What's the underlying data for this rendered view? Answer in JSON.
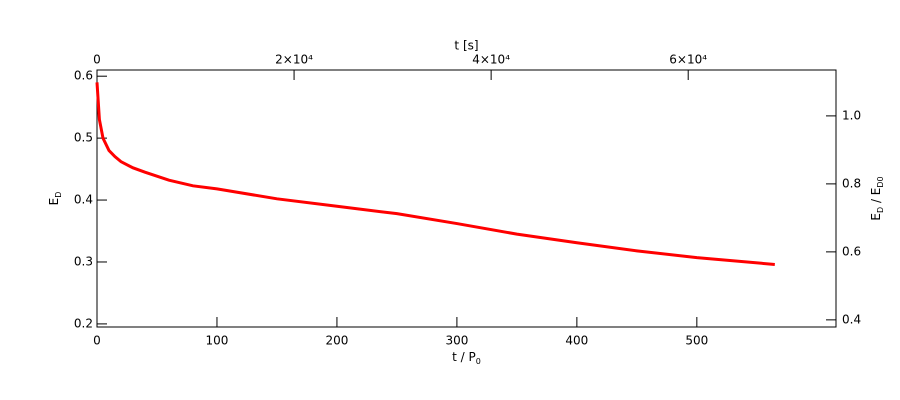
{
  "chart_data": {
    "type": "line",
    "xlabel": [
      "t / P",
      "0"
    ],
    "x2label": "t [s]",
    "ylabel": [
      "E",
      "D"
    ],
    "y2label": [
      "E",
      "D",
      " / E",
      "D0"
    ],
    "x": [
      0,
      1,
      2,
      5,
      10,
      15,
      20,
      30,
      40,
      60,
      80,
      100,
      150,
      200,
      250,
      300,
      350,
      400,
      450,
      500,
      565
    ],
    "series": [
      {
        "color": "#ff0000",
        "values": [
          0.59,
          0.56,
          0.53,
          0.5,
          0.48,
          0.47,
          0.462,
          0.452,
          0.445,
          0.432,
          0.423,
          0.418,
          0.402,
          0.39,
          0.378,
          0.362,
          0.345,
          0.331,
          0.318,
          0.307,
          0.296
        ]
      }
    ],
    "xlim": [
      0,
      616
    ],
    "xticks": [
      0,
      100,
      200,
      300,
      400,
      500
    ],
    "x2lim": [
      0,
      75000
    ],
    "x2ticks": [
      0,
      {
        "value": 20000,
        "label": "2×10⁴"
      },
      {
        "value": 40000,
        "label": "4×10⁴"
      },
      {
        "value": 60000,
        "label": "6×10⁴"
      }
    ],
    "ylim": [
      0.195,
      0.61
    ],
    "yticks": [
      0.2,
      0.3,
      0.4,
      0.5,
      0.6
    ],
    "y2lim": [
      0.379,
      1.135
    ],
    "y2ticks": [
      0.4,
      0.6,
      0.8,
      {
        "value": 1.0,
        "label": "1.0"
      }
    ]
  }
}
